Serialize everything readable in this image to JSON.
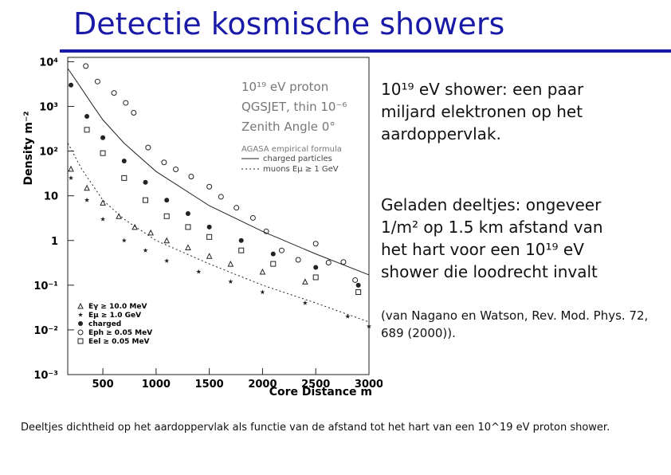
{
  "title": "Detectie kosmische showers",
  "bullets": [
    "10¹⁹ eV shower: een paar miljard elektronen op het aardoppervlak.",
    "Geladen deeltjes: ongeveer 1/m² op 1.5 km afstand van het hart voor een 10¹⁹ eV shower die loodrecht invalt",
    "(van Nagano en Watson, Rev. Mod. Phys. 72, 689 (2000))."
  ],
  "caption": "Deeltjes dichtheid op het aardoppervlak als functie van de afstand tot het hart van een 10^19 eV proton shower.",
  "chart_data": {
    "type": "scatter",
    "x_label": "Core Distance  m",
    "y_label": "Density  m⁻²",
    "annotations": [
      "10¹⁹ eV  proton",
      "QGSJET, thin 10⁻⁶",
      "Zenith Angle 0°",
      "AGASA empirical formula"
    ],
    "xlim": [
      170,
      3000
    ],
    "xticks": [
      500,
      1000,
      1500,
      2000,
      2500,
      3000
    ],
    "ylim": [
      0.001,
      12500
    ],
    "log_y": true,
    "yticks": [
      {
        "value": 0.001,
        "label": "10⁻³"
      },
      {
        "value": 0.01,
        "label": "10⁻²"
      },
      {
        "value": 0.1,
        "label": "10⁻¹"
      },
      1,
      10,
      {
        "value": 100,
        "label": "10²"
      },
      {
        "value": 1000,
        "label": "10³"
      },
      {
        "value": 10000,
        "label": "10⁴"
      }
    ],
    "series": [
      {
        "name": "charged particles",
        "style": "line",
        "dash": "solid",
        "color": "#222222",
        "x": [
          172,
          300,
          400,
          500,
          700,
          1000,
          1500,
          2000,
          2500,
          3000
        ],
        "values": [
          7000,
          2500,
          1100,
          500,
          150,
          35,
          6,
          1.6,
          0.5,
          0.17
        ]
      },
      {
        "name": "muons Eμ ≥ 1 GeV",
        "style": "line",
        "dash": "dotted",
        "color": "#222222",
        "x": [
          172,
          300,
          500,
          700,
          1000,
          1500,
          2000,
          2500,
          3000
        ],
        "values": [
          150,
          40,
          8,
          3,
          1,
          0.3,
          0.1,
          0.04,
          0.015
        ]
      },
      {
        "name": "Eγ ≥ 10.0 MeV",
        "style": "triangle",
        "color": "#222222",
        "x": [
          200,
          350,
          500,
          650,
          800,
          950,
          1100,
          1300,
          1500,
          1700,
          2000,
          2400
        ],
        "values": [
          40,
          15,
          7,
          3.5,
          2,
          1.5,
          1,
          0.7,
          0.45,
          0.3,
          0.2,
          0.12
        ]
      },
      {
        "name": "Eμ ≥ 1.0 GeV",
        "style": "star",
        "color": "#222222",
        "x": [
          200,
          350,
          500,
          700,
          900,
          1100,
          1400,
          1700,
          2000,
          2400,
          2800,
          3000
        ],
        "values": [
          25,
          8,
          3,
          1,
          0.6,
          0.35,
          0.2,
          0.12,
          0.07,
          0.04,
          0.02,
          0.012
        ]
      },
      {
        "name": "charged",
        "style": "dot",
        "color": "#222222",
        "x": [
          200,
          350,
          500,
          700,
          900,
          1100,
          1300,
          1500,
          1800,
          2100,
          2500,
          2900
        ],
        "values": [
          3000,
          600,
          200,
          60,
          20,
          8,
          4,
          2,
          1,
          0.5,
          0.25,
          0.1
        ]
      },
      {
        "name": "Eph ≥ 0.05 MeV",
        "style": "circle",
        "color": "#222222",
        "x": [
          340,
          450,
          605,
          715,
          790,
          925,
          1075,
          1185,
          1330,
          1500,
          1610,
          1755,
          1910,
          2035,
          2180,
          2335,
          2500,
          2620,
          2760,
          2870
        ],
        "values": [
          8000,
          3600,
          2000,
          1200,
          720,
          120,
          56,
          39,
          27,
          16,
          9.5,
          5.4,
          3.2,
          1.6,
          0.6,
          0.37,
          0.85,
          0.32,
          0.33,
          0.13
        ]
      },
      {
        "name": "Eel ≥ 0.05 MeV",
        "style": "square",
        "color": "#222222",
        "x": [
          350,
          500,
          700,
          900,
          1100,
          1300,
          1500,
          1800,
          2100,
          2500,
          2900
        ],
        "values": [
          300,
          90,
          25,
          8,
          3.5,
          2,
          1.2,
          0.6,
          0.3,
          0.15,
          0.07
        ]
      }
    ]
  }
}
